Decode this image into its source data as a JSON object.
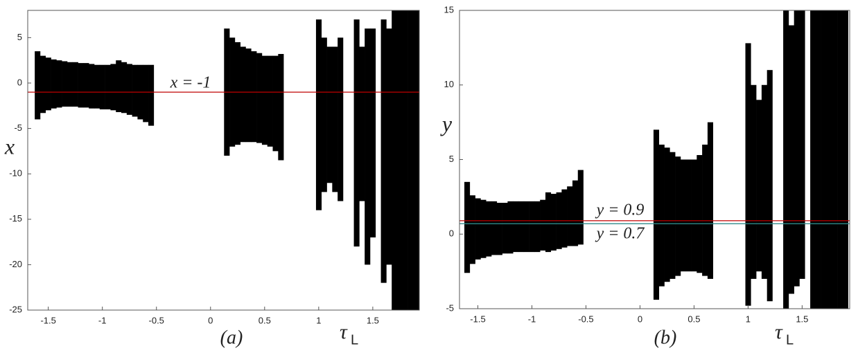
{
  "chart_data": [
    {
      "type": "range",
      "panel_label": "(a)",
      "x_label": "τ",
      "x_label_sub": "L",
      "y_label": "x",
      "color": "#000000",
      "xlim": [
        -1.69,
        1.93
      ],
      "xticks": [
        -1.5,
        -1,
        -0.5,
        0,
        0.5,
        1,
        1.5
      ],
      "ylim": [
        -25,
        8
      ],
      "yticks": [
        -25,
        -20,
        -15,
        -10,
        -5,
        0,
        5
      ],
      "x": [
        -1.6,
        -1.55,
        -1.5,
        -1.45,
        -1.4,
        -1.35,
        -1.3,
        -1.25,
        -1.2,
        -1.15,
        -1.1,
        -1.05,
        -1,
        -0.95,
        -0.9,
        -0.85,
        -0.8,
        -0.75,
        -0.7,
        -0.65,
        -0.6,
        -0.55,
        -0.5,
        -0.45,
        -0.4,
        -0.35,
        -0.3,
        -0.25,
        -0.2,
        -0.15,
        -0.1,
        -0.05,
        0,
        0.05,
        0.1,
        0.15,
        0.2,
        0.25,
        0.3,
        0.35,
        0.4,
        0.45,
        0.5,
        0.55,
        0.6,
        0.65,
        0.7,
        0.75,
        0.8,
        0.85,
        0.9,
        0.95,
        1,
        1.05,
        1.1,
        1.15,
        1.2,
        1.25,
        1.3,
        1.35,
        1.4,
        1.45,
        1.5,
        1.55,
        1.6,
        1.65,
        1.7,
        1.75,
        1.8,
        1.85,
        1.9
      ],
      "high": [
        3.5,
        3,
        2.8,
        2.6,
        2.5,
        2.4,
        2.3,
        2.3,
        2.2,
        2.2,
        2.1,
        2,
        2,
        2,
        2.1,
        2.5,
        2.3,
        2.1,
        2,
        2,
        2,
        2,
        null,
        null,
        null,
        null,
        null,
        null,
        null,
        null,
        null,
        null,
        null,
        null,
        null,
        6,
        5,
        4.5,
        4,
        3.8,
        3.5,
        3.3,
        3,
        3,
        3,
        3.2,
        null,
        null,
        null,
        null,
        null,
        null,
        7,
        5,
        4,
        4,
        5,
        null,
        null,
        7,
        4,
        6,
        6,
        null,
        7,
        6,
        8,
        8,
        8,
        8,
        8
      ],
      "low": [
        -4,
        -3.3,
        -3,
        -2.8,
        -2.7,
        -2.6,
        -2.6,
        -2.6,
        -2.7,
        -2.7,
        -2.8,
        -2.8,
        -2.9,
        -2.9,
        -3,
        -3.2,
        -3.3,
        -3.5,
        -3.7,
        -4,
        -4.3,
        -4.7,
        null,
        null,
        null,
        null,
        null,
        null,
        null,
        null,
        null,
        null,
        null,
        null,
        null,
        -8,
        -7,
        -6.8,
        -6.5,
        -6.5,
        -6.5,
        -6.6,
        -6.8,
        -7,
        -7.5,
        -8.5,
        null,
        null,
        null,
        null,
        null,
        null,
        -14,
        -12,
        -11,
        -12,
        -13,
        null,
        null,
        -18,
        -13,
        -20,
        -17,
        null,
        -22,
        -20,
        -25,
        -25,
        -25,
        -25,
        -25
      ],
      "ref_lines": [
        {
          "label": "x = -1",
          "value": -1,
          "color": "#c00000"
        }
      ]
    },
    {
      "type": "range",
      "panel_label": "(b)",
      "x_label": "τ",
      "x_label_sub": "L",
      "y_label": "y",
      "color": "#000000",
      "xlim": [
        -1.67,
        1.94
      ],
      "xticks": [
        -1.5,
        -1,
        -0.5,
        0,
        0.5,
        1,
        1.5
      ],
      "ylim": [
        -5,
        15
      ],
      "yticks": [
        -5,
        0,
        5,
        10,
        15
      ],
      "x": [
        -1.6,
        -1.55,
        -1.5,
        -1.45,
        -1.4,
        -1.35,
        -1.3,
        -1.25,
        -1.2,
        -1.15,
        -1.1,
        -1.05,
        -1,
        -0.95,
        -0.9,
        -0.85,
        -0.8,
        -0.75,
        -0.7,
        -0.65,
        -0.6,
        -0.55,
        -0.5,
        -0.45,
        -0.4,
        -0.35,
        -0.3,
        -0.25,
        -0.2,
        -0.15,
        -0.1,
        -0.05,
        0,
        0.05,
        0.1,
        0.15,
        0.2,
        0.25,
        0.3,
        0.35,
        0.4,
        0.45,
        0.5,
        0.55,
        0.6,
        0.65,
        0.7,
        0.75,
        0.8,
        0.85,
        0.9,
        0.95,
        1,
        1.05,
        1.1,
        1.15,
        1.2,
        1.25,
        1.3,
        1.35,
        1.4,
        1.45,
        1.5,
        1.55,
        1.6,
        1.65,
        1.7,
        1.75,
        1.8,
        1.85,
        1.9
      ],
      "high": [
        3.5,
        2.6,
        2.4,
        2.3,
        2.2,
        2.2,
        2.1,
        2.1,
        2.2,
        2.2,
        2.2,
        2.2,
        2.2,
        2.2,
        2.3,
        2.8,
        2.7,
        2.8,
        3,
        3.2,
        3.6,
        4.3,
        null,
        null,
        null,
        null,
        null,
        null,
        null,
        null,
        null,
        null,
        null,
        null,
        null,
        7,
        6,
        5.8,
        5.5,
        5.2,
        5,
        5,
        5,
        5.3,
        6,
        7.5,
        null,
        null,
        null,
        null,
        null,
        null,
        12.8,
        10,
        9,
        10,
        11,
        null,
        null,
        15,
        14,
        15,
        15,
        null,
        15,
        15,
        15,
        15,
        15,
        15,
        15
      ],
      "low": [
        -2.6,
        -2,
        -1.7,
        -1.6,
        -1.5,
        -1.4,
        -1.4,
        -1.3,
        -1.3,
        -1.2,
        -1.2,
        -1.2,
        -1.2,
        -1.2,
        -1.1,
        -1.2,
        -1.1,
        -1,
        -0.9,
        -0.8,
        -0.8,
        -0.7,
        null,
        null,
        null,
        null,
        null,
        null,
        null,
        null,
        null,
        null,
        null,
        null,
        null,
        -4.4,
        -3.5,
        -3.2,
        -3,
        -2.8,
        -2.5,
        -2.5,
        -2.5,
        -2.6,
        -2.8,
        -3,
        null,
        null,
        null,
        null,
        null,
        null,
        -4.8,
        -3,
        -2.5,
        -3,
        -4.5,
        null,
        null,
        -5,
        -4,
        -3.5,
        -3,
        null,
        -5,
        -5,
        -5,
        -5,
        -5,
        -5,
        -5
      ],
      "ref_lines": [
        {
          "label": "y = 0.9",
          "value": 0.9,
          "color": "#c00000"
        },
        {
          "label": "y = 0.7",
          "value": 0.7,
          "color": "#2e8b8b"
        }
      ]
    }
  ]
}
